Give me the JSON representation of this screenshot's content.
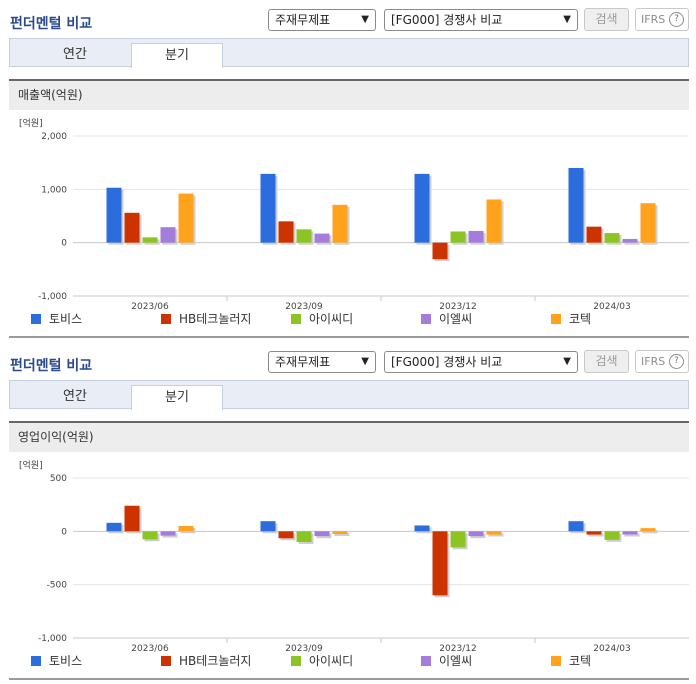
{
  "controls": {
    "company_group": "주재무제표",
    "comparison": "[FG000] 경쟁사 비교",
    "search_label": "검색",
    "ifrs_label": "IFRS",
    "help_label": "?"
  },
  "legend": [
    {
      "name": "토비스",
      "color": "#2b6ddc"
    },
    {
      "name": "HB테크놀러지",
      "color": "#cc3300"
    },
    {
      "name": "아이씨디",
      "color": "#8bc424"
    },
    {
      "name": "이엘씨",
      "color": "#a37dd9"
    },
    {
      "name": "코텍",
      "color": "#ffa21c"
    }
  ],
  "charts": [
    {
      "panel_title": "펀더멘털 비교",
      "tabs": [
        "연간",
        "분기"
      ],
      "metric_label": "매출액(억원)",
      "unit_label": "[억원]",
      "chart_data": {
        "type": "bar",
        "categories": [
          "2023/06",
          "2023/09",
          "2023/12",
          "2024/03"
        ],
        "ylim": [
          -1000,
          2000
        ],
        "yticks": [
          -1000,
          0,
          1000,
          2000
        ],
        "ytick_labels": [
          "-1,000",
          "0",
          "1,000",
          "2,000"
        ],
        "series": [
          {
            "name": "토비스",
            "values": [
              1030,
              1290,
              1290,
              1400
            ]
          },
          {
            "name": "HB테크놀러지",
            "values": [
              560,
              400,
              -310,
              300
            ]
          },
          {
            "name": "아이씨디",
            "values": [
              100,
              250,
              210,
              180
            ]
          },
          {
            "name": "이엘씨",
            "values": [
              290,
              170,
              220,
              70
            ]
          },
          {
            "name": "코텍",
            "values": [
              920,
              710,
              810,
              740
            ]
          }
        ]
      }
    },
    {
      "panel_title": "펀더멘털 비교",
      "tabs": [
        "연간",
        "분기"
      ],
      "metric_label": "영업이익(억원)",
      "unit_label": "[억원]",
      "chart_data": {
        "type": "bar",
        "categories": [
          "2023/06",
          "2023/09",
          "2023/12",
          "2024/03"
        ],
        "ylim": [
          -1000,
          500
        ],
        "yticks": [
          -1000,
          -500,
          0,
          500
        ],
        "ytick_labels": [
          "-1,000",
          "-500",
          "0",
          "500"
        ],
        "series": [
          {
            "name": "토비스",
            "values": [
              80,
              95,
              55,
              95
            ]
          },
          {
            "name": "HB테크놀러지",
            "values": [
              240,
              -65,
              -600,
              -30
            ]
          },
          {
            "name": "아이씨디",
            "values": [
              -75,
              -100,
              -150,
              -80
            ]
          },
          {
            "name": "이엘씨",
            "values": [
              -40,
              -45,
              -45,
              -30
            ]
          },
          {
            "name": "코텍",
            "values": [
              50,
              -25,
              -30,
              30
            ]
          }
        ]
      }
    }
  ]
}
